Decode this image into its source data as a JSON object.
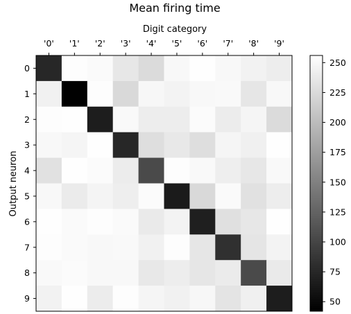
{
  "chart_data": {
    "type": "heatmap",
    "title": "Mean firing time",
    "xlabel": "Digit category",
    "ylabel": "Output neuron",
    "x_labels": [
      "'0'",
      "'1'",
      "'2'",
      "'3'",
      "'4'",
      "'5'",
      "'6'",
      "'7'",
      "'8'",
      "'9'"
    ],
    "y_labels": [
      "0",
      "1",
      "2",
      "3",
      "4",
      "5",
      "6",
      "7",
      "8",
      "9"
    ],
    "colormap": "gray",
    "vmin": 42,
    "vmax": 256,
    "colorbar_ticks": [
      50,
      75,
      100,
      125,
      150,
      175,
      200,
      225,
      250
    ],
    "values": [
      [
        75,
        254,
        252,
        236,
        226,
        250,
        255,
        250,
        245,
        241
      ],
      [
        244,
        43,
        254,
        224,
        249,
        246,
        250,
        251,
        235,
        250
      ],
      [
        254,
        255,
        66,
        251,
        241,
        241,
        253,
        240,
        248,
        226
      ],
      [
        250,
        248,
        255,
        75,
        228,
        237,
        228,
        248,
        243,
        255
      ],
      [
        231,
        255,
        253,
        240,
        104,
        254,
        251,
        242,
        236,
        251
      ],
      [
        250,
        239,
        247,
        242,
        253,
        65,
        224,
        252,
        231,
        241
      ],
      [
        255,
        252,
        254,
        252,
        238,
        246,
        68,
        230,
        236,
        255
      ],
      [
        254,
        252,
        250,
        251,
        244,
        254,
        235,
        82,
        234,
        246
      ],
      [
        251,
        253,
        250,
        250,
        237,
        241,
        235,
        239,
        104,
        238
      ],
      [
        245,
        255,
        240,
        254,
        248,
        244,
        249,
        233,
        243,
        66
      ]
    ]
  }
}
